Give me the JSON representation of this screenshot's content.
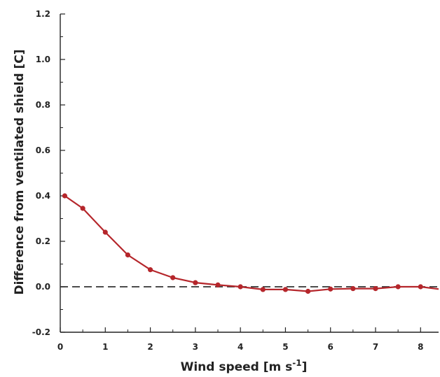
{
  "chart_data": {
    "type": "line",
    "title": "",
    "xlabel": {
      "main": "Wind speed [m s",
      "sup": "-1",
      "tail": "]"
    },
    "ylabel": "Difference from ventilated shield [C]",
    "xlim": [
      0,
      8.4
    ],
    "ylim": [
      -0.2,
      1.2
    ],
    "x_ticks": [
      0,
      1,
      2,
      3,
      4,
      5,
      6,
      7,
      8
    ],
    "x_tick_labels": [
      "0",
      "1",
      "2",
      "3",
      "4",
      "5",
      "6",
      "7",
      "8"
    ],
    "y_ticks": [
      -0.2,
      0.0,
      0.2,
      0.4,
      0.6,
      0.8,
      1.0,
      1.2
    ],
    "y_tick_labels": [
      "-0.2",
      "0.0",
      "0.2",
      "0.4",
      "0.6",
      "0.8",
      "1.0",
      "1.2"
    ],
    "grid": false,
    "reference_line": {
      "y": 0.0,
      "style": "dashed",
      "color": "#333333"
    },
    "series": [
      {
        "color": "#b5262b",
        "x": [
          0.1,
          0.5,
          1.0,
          1.5,
          2.0,
          2.5,
          3.0,
          3.5,
          4.0,
          4.5,
          5.0,
          5.5,
          6.0,
          6.5,
          7.0,
          7.5,
          8.0,
          8.4
        ],
        "y": [
          0.4,
          0.345,
          0.24,
          0.14,
          0.075,
          0.04,
          0.018,
          0.008,
          0.0,
          -0.012,
          -0.012,
          -0.02,
          -0.01,
          -0.008,
          -0.008,
          0.0,
          0.0,
          -0.01
        ],
        "markers": [
          true,
          true,
          true,
          true,
          true,
          true,
          true,
          true,
          true,
          true,
          true,
          true,
          true,
          true,
          true,
          true,
          true,
          false
        ]
      }
    ]
  }
}
